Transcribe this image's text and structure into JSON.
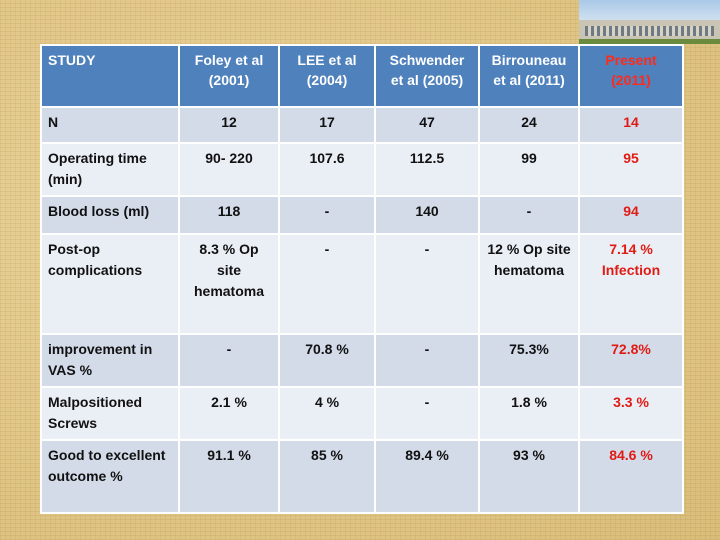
{
  "header": {
    "study": "STUDY",
    "columns": [
      {
        "name": "Foley et al (2001)"
      },
      {
        "name": "LEE et al (2004)"
      },
      {
        "name": "Schwender et al (2005)"
      },
      {
        "name": "Birrouneau et al (2011)"
      },
      {
        "name": "Present (2011)"
      }
    ]
  },
  "rows": [
    {
      "label": "N",
      "values": [
        "12",
        "17",
        "47",
        "24",
        "14"
      ]
    },
    {
      "label": "Operating time (min)",
      "values": [
        "90- 220",
        "107.6",
        "112.5",
        "99",
        "95"
      ]
    },
    {
      "label": "Blood loss (ml)",
      "values": [
        "118",
        "-",
        "140",
        "-",
        "94"
      ]
    },
    {
      "label": "Post-op complications",
      "values": [
        "8.3 % Op site hematoma",
        "-",
        "-",
        "12 % Op site hematoma",
        "7.14 % Infection"
      ]
    },
    {
      "label": "improvement in VAS %",
      "values": [
        "-",
        "70.8 %",
        "-",
        "75.3%",
        "72.8%"
      ]
    },
    {
      "label": "Malpositioned Screws",
      "values": [
        "2.1 %",
        "4 %",
        "-",
        "1.8 %",
        "3.3 %"
      ]
    },
    {
      "label": "Good to excellent outcome %",
      "values": [
        "91.1 %",
        "85 %",
        "89.4 %",
        "93 %",
        "84.6 %"
      ]
    }
  ],
  "colors": {
    "header_bg": "#4f81bd",
    "row_odd": "#d3dbe9",
    "row_even": "#eaeef5",
    "present_highlight": "#e01b14",
    "slide_bg": "#e3c98a"
  }
}
